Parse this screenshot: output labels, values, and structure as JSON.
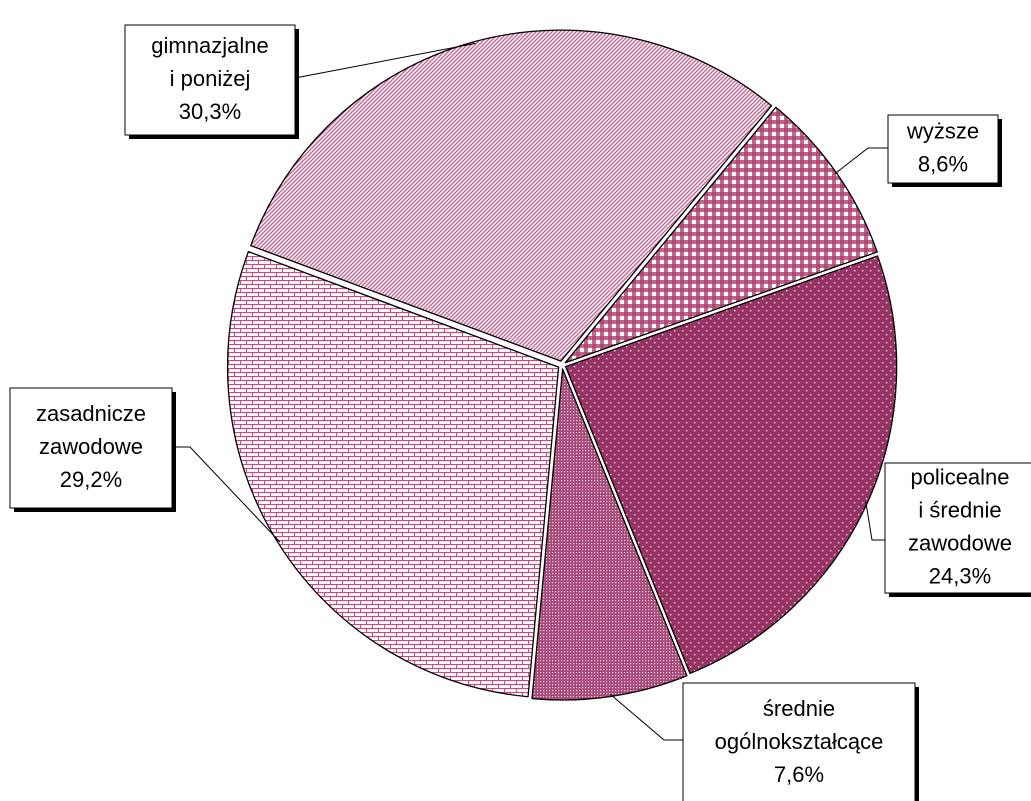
{
  "chart_data": {
    "type": "pie",
    "categories": [
      [
        "wyższe"
      ],
      [
        "policealne",
        "i średnie",
        "zawodowe"
      ],
      [
        "średnie",
        "ogólnokształcące"
      ],
      [
        "zasadnicze",
        "zawodowe"
      ],
      [
        "gimnazjalne",
        "i poniżej"
      ]
    ],
    "values": [
      8.6,
      24.3,
      7.6,
      29.2,
      30.3
    ],
    "value_labels": [
      "8,6%",
      "24,3%",
      "7,6%",
      "29,2%",
      "30,3%"
    ],
    "colors": [
      "#b0406f",
      "#993366",
      "#a84a7a",
      "#c0507f",
      "#c56a98"
    ]
  }
}
